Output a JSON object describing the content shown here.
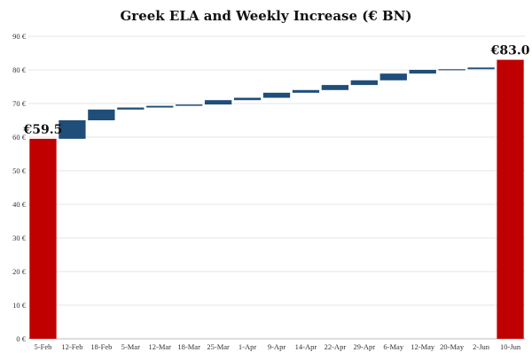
{
  "chart_data": {
    "type": "bar",
    "subtype": "waterfall",
    "title": "Greek ELA and Weekly Increase (€ BN)",
    "xlabel": "",
    "ylabel": "",
    "ylim": [
      0,
      90
    ],
    "y_ticks": [
      0,
      10,
      20,
      30,
      40,
      50,
      60,
      70,
      80,
      90
    ],
    "y_tick_labels": [
      "0 €",
      "10 €",
      "20 €",
      "30 €",
      "40 €",
      "50 €",
      "60 €",
      "70 €",
      "80 €",
      "90 €"
    ],
    "grid": true,
    "legend": "none",
    "colors": {
      "total": "#c00000",
      "increase": "#1f4e79"
    },
    "categories": [
      "5-Feb",
      "12-Feb",
      "18-Feb",
      "5-Mar",
      "12-Mar",
      "18-Mar",
      "25-Mar",
      "1-Apr",
      "9-Apr",
      "14-Apr",
      "22-Apr",
      "29-Apr",
      "6-May",
      "12-May",
      "20-May",
      "2-Jun",
      "10-Jun"
    ],
    "bars": [
      {
        "category": "5-Feb",
        "kind": "total",
        "start": 0,
        "end": 59.5
      },
      {
        "category": "12-Feb",
        "kind": "increase",
        "start": 59.5,
        "end": 65.0
      },
      {
        "category": "18-Feb",
        "kind": "increase",
        "start": 65.0,
        "end": 68.2
      },
      {
        "category": "5-Mar",
        "kind": "increase",
        "start": 68.2,
        "end": 68.8
      },
      {
        "category": "12-Mar",
        "kind": "increase",
        "start": 68.8,
        "end": 69.3
      },
      {
        "category": "18-Mar",
        "kind": "increase",
        "start": 69.3,
        "end": 69.7
      },
      {
        "category": "25-Mar",
        "kind": "increase",
        "start": 69.7,
        "end": 71.0
      },
      {
        "category": "1-Apr",
        "kind": "increase",
        "start": 71.0,
        "end": 71.7
      },
      {
        "category": "9-Apr",
        "kind": "increase",
        "start": 71.7,
        "end": 73.2
      },
      {
        "category": "14-Apr",
        "kind": "increase",
        "start": 73.2,
        "end": 74.0
      },
      {
        "category": "22-Apr",
        "kind": "increase",
        "start": 74.0,
        "end": 75.5
      },
      {
        "category": "29-Apr",
        "kind": "increase",
        "start": 75.5,
        "end": 76.9
      },
      {
        "category": "6-May",
        "kind": "increase",
        "start": 76.9,
        "end": 78.9
      },
      {
        "category": "12-May",
        "kind": "increase",
        "start": 78.9,
        "end": 80.0
      },
      {
        "category": "20-May",
        "kind": "increase",
        "start": 80.0,
        "end": 80.2
      },
      {
        "category": "2-Jun",
        "kind": "increase",
        "start": 80.2,
        "end": 80.7
      },
      {
        "category": "10-Jun",
        "kind": "total",
        "start": 0,
        "end": 83.0
      }
    ],
    "data_labels": [
      {
        "category": "5-Feb",
        "text": "€59.5"
      },
      {
        "category": "10-Jun",
        "text": "€83.0"
      }
    ]
  }
}
